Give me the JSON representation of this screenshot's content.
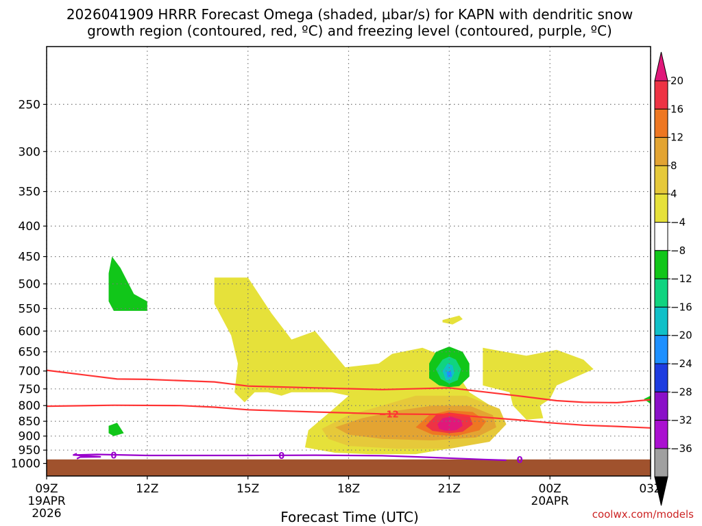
{
  "chart_data": {
    "type": "time-height",
    "title_line1": "2026041909 HRRR Forecast Omega (shaded, µbar/s) for KAPN with dendritic snow",
    "title_line2": "growth region (contoured, red, ºC) and freezing level (contoured, purple, ºC)",
    "xlabel": "Forecast Time (UTC)",
    "credit": "coolwx.com/models",
    "x_range_hours": [
      0,
      18
    ],
    "x_ticks": [
      {
        "hour": 0,
        "label": "09Z",
        "sub1": "19APR",
        "sub2": "2026"
      },
      {
        "hour": 3,
        "label": "12Z"
      },
      {
        "hour": 6,
        "label": "15Z"
      },
      {
        "hour": 9,
        "label": "18Z"
      },
      {
        "hour": 12,
        "label": "21Z"
      },
      {
        "hour": 15,
        "label": "00Z",
        "sub1": "20APR"
      },
      {
        "hour": 18,
        "label": "03Z"
      }
    ],
    "y_scale": "log-pressure",
    "y_range_hpa": [
      1050,
      200
    ],
    "y_ticks": [
      {
        "value": 250,
        "label": "250"
      },
      {
        "value": 300,
        "label": "300"
      },
      {
        "value": 350,
        "label": "350"
      },
      {
        "value": 400,
        "label": "400"
      },
      {
        "value": 450,
        "label": "450"
      },
      {
        "value": 500,
        "label": "500"
      },
      {
        "value": 550,
        "label": "550"
      },
      {
        "value": 600,
        "label": "600"
      },
      {
        "value": 650,
        "label": "650"
      },
      {
        "value": 700,
        "label": "700"
      },
      {
        "value": 750,
        "label": "750"
      },
      {
        "value": 800,
        "label": "800"
      },
      {
        "value": 850,
        "label": "850"
      },
      {
        "value": 900,
        "label": "900"
      },
      {
        "value": 950,
        "label": "950"
      },
      {
        "value": 1000,
        "label": "1000"
      }
    ],
    "ground_hpa": 985,
    "colorbar": {
      "labels": [
        "20",
        "16",
        "12",
        "8",
        "4",
        "−4",
        "−8",
        "−12",
        "−16",
        "−20",
        "−24",
        "−28",
        "−32",
        "−36"
      ],
      "colors_top_down": [
        "#ee3344",
        "#ee7722",
        "#e3a432",
        "#e6c93a",
        "#e6e13a",
        "#ffffff",
        "#11c619",
        "#10d480",
        "#10c0c8",
        "#1e90ff",
        "#1e3ce0",
        "#8a10c8",
        "#aa10d0",
        "#a0a0a0"
      ],
      "overflow_high_color": "#e0187a",
      "overflow_low_color": "#000000"
    },
    "shaded_regions": [
      {
        "name": "green-region-upper",
        "color": "#11c619",
        "points": [
          [
            1.95,
            450
          ],
          [
            2.2,
            470
          ],
          [
            2.6,
            520
          ],
          [
            3.0,
            535
          ],
          [
            3.0,
            555
          ],
          [
            2.0,
            555
          ],
          [
            1.85,
            535
          ],
          [
            1.85,
            480
          ]
        ]
      },
      {
        "name": "green-region-lower",
        "color": "#11c619",
        "points": [
          [
            1.85,
            865
          ],
          [
            2.1,
            855
          ],
          [
            2.3,
            890
          ],
          [
            2.0,
            900
          ],
          [
            1.85,
            890
          ]
        ]
      },
      {
        "name": "yellow-region-main",
        "color": "#e6e13a",
        "points": [
          [
            5.0,
            488
          ],
          [
            6.0,
            488
          ],
          [
            6.7,
            560
          ],
          [
            7.3,
            620
          ],
          [
            8.0,
            600
          ],
          [
            8.9,
            690
          ],
          [
            9.9,
            680
          ],
          [
            10.3,
            655
          ],
          [
            11.2,
            640
          ],
          [
            11.8,
            660
          ],
          [
            11.6,
            715
          ],
          [
            12.4,
            730
          ],
          [
            12.6,
            760
          ],
          [
            13.3,
            805
          ],
          [
            13.5,
            850
          ],
          [
            13.5,
            885
          ],
          [
            12.2,
            940
          ],
          [
            11.0,
            965
          ],
          [
            9.6,
            965
          ],
          [
            8.6,
            960
          ],
          [
            7.7,
            940
          ],
          [
            7.8,
            880
          ],
          [
            8.5,
            815
          ],
          [
            9.0,
            770
          ],
          [
            8.5,
            760
          ],
          [
            7.3,
            760
          ],
          [
            7.0,
            770
          ],
          [
            6.6,
            760
          ],
          [
            6.2,
            760
          ],
          [
            5.9,
            790
          ],
          [
            5.6,
            760
          ],
          [
            5.7,
            680
          ],
          [
            5.5,
            610
          ],
          [
            5.0,
            540
          ]
        ]
      },
      {
        "name": "yellow-region-right",
        "color": "#e6e13a",
        "points": [
          [
            13.0,
            640
          ],
          [
            14.3,
            660
          ],
          [
            15.2,
            645
          ],
          [
            16.0,
            670
          ],
          [
            16.3,
            695
          ],
          [
            15.2,
            740
          ],
          [
            15.0,
            780
          ],
          [
            14.7,
            800
          ],
          [
            14.8,
            840
          ],
          [
            14.3,
            845
          ],
          [
            13.9,
            800
          ],
          [
            13.8,
            760
          ],
          [
            13.2,
            745
          ],
          [
            13.0,
            740
          ],
          [
            13.0,
            700
          ]
        ]
      },
      {
        "name": "yellow-small-region",
        "color": "#e6e13a",
        "points": [
          [
            11.8,
            575
          ],
          [
            12.3,
            565
          ],
          [
            12.4,
            573
          ],
          [
            12.1,
            585
          ],
          [
            11.8,
            580
          ]
        ]
      },
      {
        "name": "yellow-small-right-edge",
        "color": "#e6e13a",
        "points": [
          [
            17.85,
            780
          ],
          [
            18.0,
            770
          ],
          [
            18.0,
            795
          ]
        ]
      },
      {
        "name": "light-orange-region",
        "color": "#e6c93a",
        "points": [
          [
            8.2,
            875
          ],
          [
            9.0,
            830
          ],
          [
            10.0,
            800
          ],
          [
            11.0,
            770
          ],
          [
            12.5,
            770
          ],
          [
            13.5,
            810
          ],
          [
            13.7,
            860
          ],
          [
            13.2,
            920
          ],
          [
            12.0,
            945
          ],
          [
            10.5,
            945
          ],
          [
            9.0,
            935
          ],
          [
            8.4,
            910
          ]
        ]
      },
      {
        "name": "orange-region",
        "color": "#e3a432",
        "points": [
          [
            8.6,
            870
          ],
          [
            9.4,
            840
          ],
          [
            10.5,
            815
          ],
          [
            11.5,
            800
          ],
          [
            12.6,
            800
          ],
          [
            13.3,
            830
          ],
          [
            13.4,
            870
          ],
          [
            12.8,
            905
          ],
          [
            11.5,
            915
          ],
          [
            10.0,
            910
          ],
          [
            9.0,
            895
          ]
        ]
      },
      {
        "name": "dark-orange-region",
        "color": "#ee7722",
        "points": [
          [
            11.0,
            870
          ],
          [
            11.4,
            830
          ],
          [
            12.0,
            815
          ],
          [
            12.7,
            820
          ],
          [
            13.1,
            850
          ],
          [
            12.9,
            880
          ],
          [
            12.2,
            900
          ],
          [
            11.5,
            895
          ]
        ]
      },
      {
        "name": "red-region",
        "color": "#ee3344",
        "points": [
          [
            11.3,
            865
          ],
          [
            11.6,
            830
          ],
          [
            12.0,
            822
          ],
          [
            12.6,
            830
          ],
          [
            12.7,
            860
          ],
          [
            12.4,
            885
          ],
          [
            12.0,
            890
          ],
          [
            11.5,
            882
          ]
        ]
      },
      {
        "name": "magenta-core-region",
        "color": "#e0187a",
        "points": [
          [
            11.65,
            860
          ],
          [
            11.8,
            840
          ],
          [
            12.05,
            835
          ],
          [
            12.35,
            845
          ],
          [
            12.4,
            865
          ],
          [
            12.2,
            880
          ],
          [
            11.9,
            882
          ],
          [
            11.7,
            875
          ]
        ]
      },
      {
        "name": "green-region-mid",
        "color": "#11c619",
        "points": [
          [
            11.4,
            680
          ],
          [
            11.6,
            650
          ],
          [
            12.0,
            637
          ],
          [
            12.4,
            650
          ],
          [
            12.6,
            680
          ],
          [
            12.6,
            715
          ],
          [
            12.3,
            742
          ],
          [
            12.0,
            745
          ],
          [
            11.7,
            740
          ],
          [
            11.4,
            720
          ]
        ]
      },
      {
        "name": "teal-region",
        "color": "#10d480",
        "points": [
          [
            11.6,
            695
          ],
          [
            11.8,
            670
          ],
          [
            12.0,
            662
          ],
          [
            12.2,
            670
          ],
          [
            12.35,
            695
          ],
          [
            12.25,
            725
          ],
          [
            12.0,
            735
          ],
          [
            11.75,
            722
          ]
        ]
      },
      {
        "name": "cyan-region",
        "color": "#10c0c8",
        "points": [
          [
            11.8,
            700
          ],
          [
            11.95,
            680
          ],
          [
            12.1,
            685
          ],
          [
            12.15,
            705
          ],
          [
            12.05,
            725
          ],
          [
            11.9,
            725
          ]
        ]
      },
      {
        "name": "blue-dot-region",
        "color": "#1e90ff",
        "points": [
          [
            11.92,
            702
          ],
          [
            12.05,
            700
          ],
          [
            12.08,
            715
          ],
          [
            11.95,
            718
          ]
        ]
      },
      {
        "name": "green-region-right-edge",
        "color": "#11c619",
        "points": [
          [
            17.8,
            780
          ],
          [
            18.0,
            770
          ],
          [
            18.0,
            795
          ]
        ]
      }
    ],
    "contours": [
      {
        "name": "red-contour-upper",
        "color": "#ff3333",
        "points": [
          [
            0,
            698
          ],
          [
            2.1,
            722
          ],
          [
            3.0,
            723
          ],
          [
            5.0,
            730
          ],
          [
            6.0,
            742
          ],
          [
            8.0,
            747
          ],
          [
            10.0,
            752
          ],
          [
            12.0,
            747
          ],
          [
            14.0,
            770
          ],
          [
            15.2,
            785
          ],
          [
            16.0,
            790
          ],
          [
            17.0,
            791
          ],
          [
            18.0,
            782
          ]
        ]
      },
      {
        "name": "red-contour-lower",
        "color": "#ff3333",
        "points": [
          [
            0,
            802
          ],
          [
            2.0,
            799
          ],
          [
            4.0,
            800
          ],
          [
            5.0,
            805
          ],
          [
            6.0,
            813
          ],
          [
            8.0,
            820
          ],
          [
            9.0,
            823
          ],
          [
            10.0,
            826
          ],
          [
            12.0,
            828
          ],
          [
            14.0,
            845
          ],
          [
            15.0,
            855
          ],
          [
            16.0,
            863
          ],
          [
            17.0,
            867
          ],
          [
            18.0,
            872
          ]
        ]
      },
      {
        "name": "purple-freezing-level",
        "color": "#9900cc",
        "points": [
          [
            0.8,
            968
          ],
          [
            1.5,
            966
          ],
          [
            3.0,
            970
          ],
          [
            4.0,
            970
          ],
          [
            6.0,
            970
          ],
          [
            8.0,
            969
          ],
          [
            10.0,
            971
          ],
          [
            11.0,
            975
          ],
          [
            13.0,
            985
          ],
          [
            13.7,
            988
          ]
        ]
      },
      {
        "name": "purple-freezing-hook",
        "color": "#9900cc",
        "points": [
          [
            0.9,
            963
          ],
          [
            0.8,
            968
          ],
          [
            1.6,
            975
          ],
          [
            1.0,
            976
          ],
          [
            0.9,
            982
          ]
        ]
      }
    ],
    "contour_labels": [
      {
        "name": "red-label-minus12",
        "hour": 10.2,
        "hpa": 826,
        "text": "−12",
        "color": "#ff3333"
      },
      {
        "name": "purple-label-0-a",
        "hour": 2.0,
        "hpa": 968,
        "text": "0",
        "color": "#9900cc"
      },
      {
        "name": "purple-label-0-b",
        "hour": 7.0,
        "hpa": 970,
        "text": "0",
        "color": "#9900cc"
      },
      {
        "name": "purple-label-0-c",
        "hour": 14.1,
        "hpa": 986,
        "text": "0",
        "color": "#9900cc"
      }
    ]
  }
}
